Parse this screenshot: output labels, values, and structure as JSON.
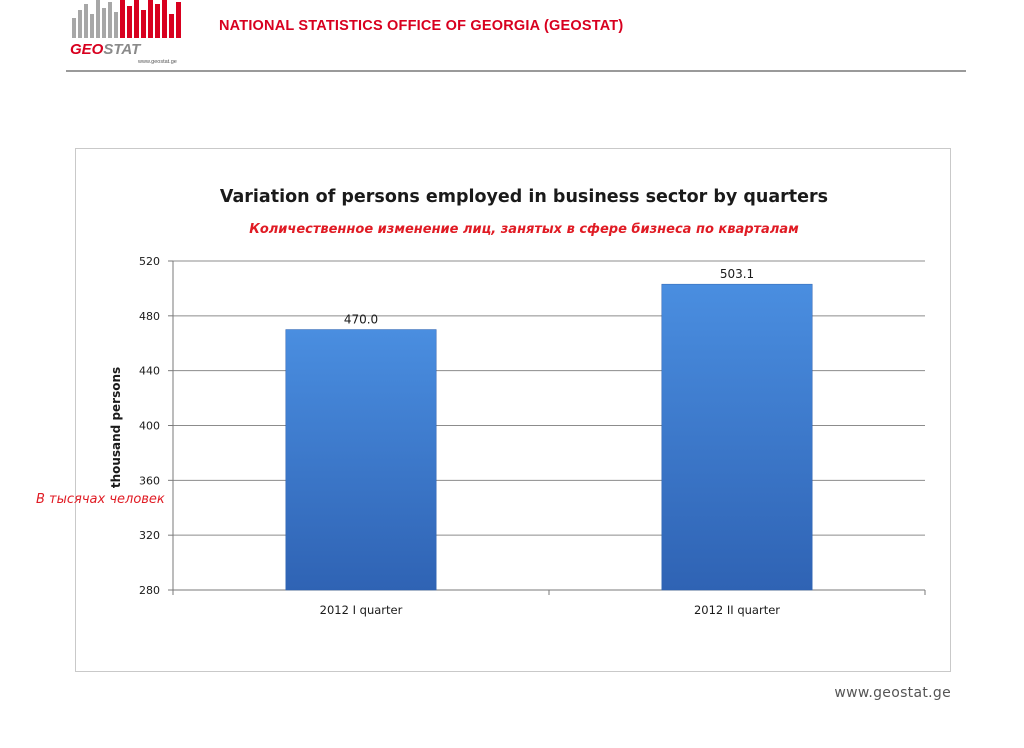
{
  "header": {
    "logo_text": "GEOSTAT",
    "logo_url": "www.geostat.ge",
    "organization": "NATIONAL STATISTICS OFFICE OF GEORGIA (GEOSTAT)"
  },
  "footer": {
    "url": "www.geostat.ge"
  },
  "colors": {
    "brand_red": "#d8001f",
    "subtitle_red": "#e01b24",
    "bar_fill_top": "#4a8ee0",
    "bar_fill_bottom": "#2f63b4",
    "grid": "#8c8c8c"
  },
  "chart_data": {
    "type": "bar",
    "title": "Variation of persons employed in business sector by quarters",
    "subtitle": "Количественное изменение лиц, занятых в сфере бизнеса по кварталам",
    "ylabel": "thousand  persons",
    "ylabel_ru": "В тысячах человек",
    "categories": [
      "2012  I quarter",
      "2012  II quarter"
    ],
    "values": [
      470.0,
      503.1
    ],
    "data_labels": [
      "470.0",
      "503.1"
    ],
    "ylim": [
      280,
      520
    ],
    "yticks": [
      "280",
      "320",
      "360",
      "400",
      "440",
      "480",
      "520"
    ],
    "grid": true,
    "legend": "none"
  }
}
